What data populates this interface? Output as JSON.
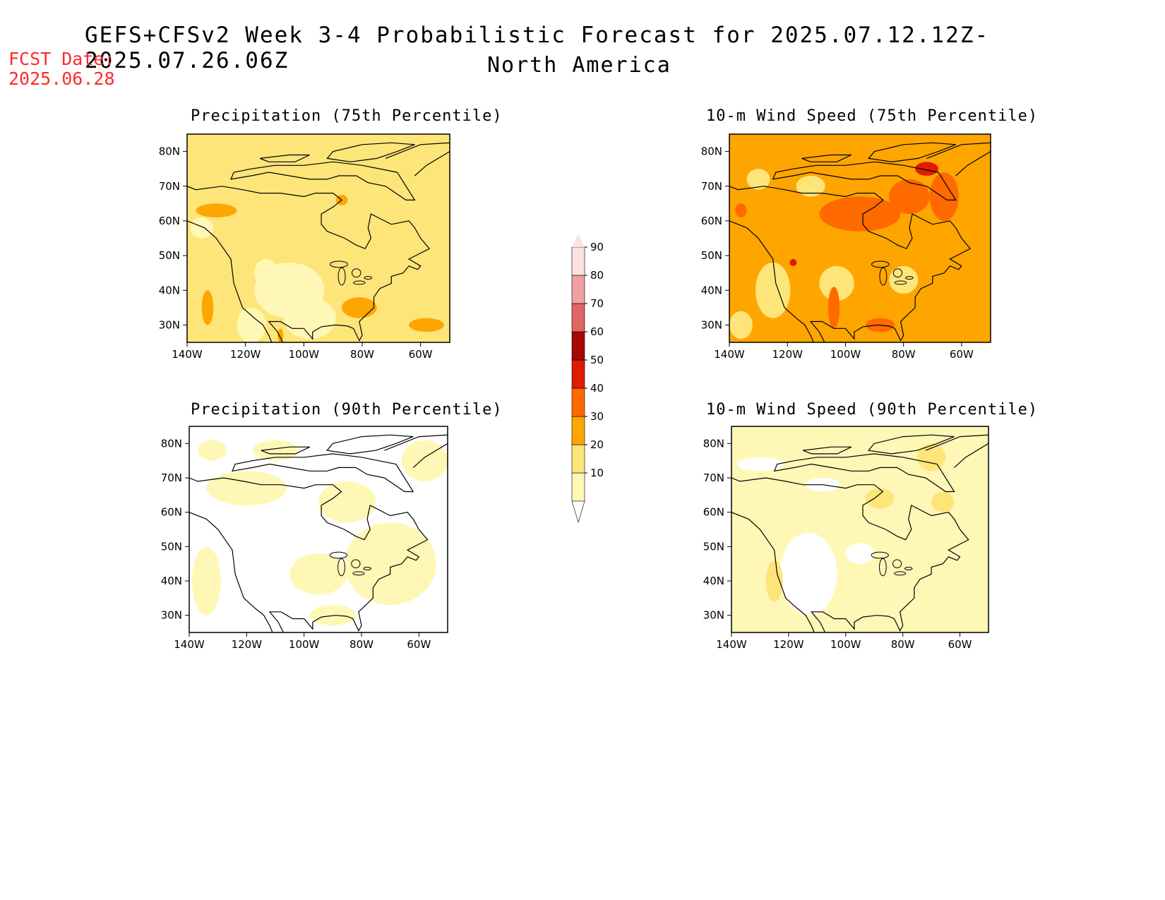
{
  "header": {
    "title": "GEFS+CFSv2 Week 3-4 Probabilistic Forecast for 2025.07.12.12Z-2025.07.26.06Z",
    "region": "North America",
    "fcst_label": "FCST Date:",
    "fcst_date": "2025.06.28"
  },
  "panels": [
    {
      "id": "precip75",
      "title": "Precipitation (75th Percentile)"
    },
    {
      "id": "wind75",
      "title": "10-m Wind Speed (75th Percentile)"
    },
    {
      "id": "precip90",
      "title": "Precipitation (90th Percentile)"
    },
    {
      "id": "wind90",
      "title": "10-m Wind Speed (90th Percentile)"
    }
  ],
  "axes": {
    "lat_labels": [
      "30N",
      "40N",
      "50N",
      "60N",
      "70N",
      "80N"
    ],
    "lon_labels": [
      "140W",
      "120W",
      "100W",
      "80W",
      "60W"
    ]
  },
  "colorbar": {
    "levels": [
      "10",
      "20",
      "30",
      "40",
      "50",
      "60",
      "70",
      "80",
      "90"
    ],
    "colors": [
      "#fff7b6",
      "#fde57a",
      "#ffa500",
      "#ff6a00",
      "#e01b00",
      "#a50a00",
      "#e06565",
      "#f0a0a0",
      "#fde2e2"
    ]
  }
}
